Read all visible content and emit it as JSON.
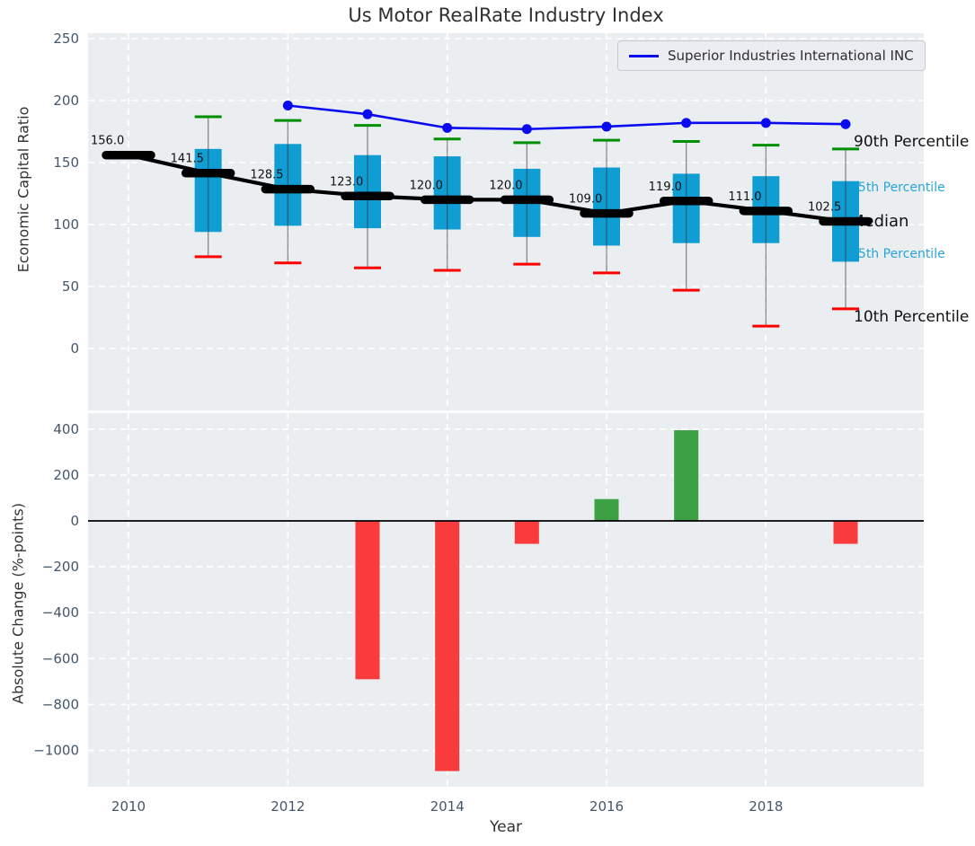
{
  "title": "Us Motor RealRate Industry Index",
  "legend": {
    "label": "Superior Industries International INC"
  },
  "axes": {
    "top_ylabel": "Economic Capital Ratio",
    "bottom_ylabel": "Absolute Change (%-points)",
    "xlabel": "Year"
  },
  "annotations": {
    "p90": "90th Percentile",
    "p75": "75th Percentile",
    "median": "Median",
    "p25": "25th Percentile",
    "p10": "10th Percentile"
  },
  "colors": {
    "plot_bg": "#eaeef1",
    "grid": "#ffffff",
    "tick_label": "#44566b",
    "box_fill": "#109dd3",
    "whisker": "rgba(45,45,45,0.5)",
    "cap_high": "#008f00",
    "cap_low": "#fe0000",
    "median_line": "#000000",
    "company_line": "#0a0af0",
    "bar_positive": "#3da043",
    "bar_negative": "#fa3b3b",
    "annotation_cyan": "#29a5d8",
    "annotation_black": "#111111",
    "zero_line": "#000000"
  },
  "chart_data": [
    {
      "type": "box",
      "title": "Us Motor RealRate Industry Index",
      "ylabel": "Economic Capital Ratio",
      "ylim": [
        -50,
        254
      ],
      "grid": true,
      "legend_position": "upper right",
      "years": [
        2010,
        2011,
        2012,
        2013,
        2014,
        2015,
        2016,
        2017,
        2018,
        2019
      ],
      "yticks": [
        0,
        50,
        100,
        150,
        200,
        250
      ],
      "ytick_labels": [
        "0",
        "50",
        "100",
        "150",
        "200",
        "250"
      ],
      "xticks": [
        2010,
        2012,
        2014,
        2016,
        2018
      ],
      "xtick_labels": [
        "2010",
        "2012",
        "2014",
        "2016",
        "2018"
      ],
      "series": {
        "median": [
          156.0,
          141.5,
          128.5,
          123.0,
          120.0,
          120.0,
          109.0,
          119.0,
          111.0,
          102.5
        ],
        "median_labels": [
          "156.0",
          "141.5",
          "128.5",
          "123.0",
          "120.0",
          "120.0",
          "109.0",
          "119.0",
          "111.0",
          "102.5"
        ],
        "q25": [
          null,
          94,
          99,
          97,
          96,
          90,
          83,
          85,
          85,
          70
        ],
        "q75": [
          null,
          161,
          165,
          156,
          155,
          145,
          146,
          141,
          139,
          135
        ],
        "p10": [
          null,
          74,
          69,
          65,
          63,
          68,
          61,
          47,
          18,
          32
        ],
        "p90": [
          null,
          187,
          184,
          180,
          169,
          166,
          168,
          167,
          164,
          161
        ]
      },
      "company_line": {
        "name": "Superior Industries International INC",
        "years": [
          2012,
          2013,
          2014,
          2015,
          2016,
          2017,
          2018,
          2019
        ],
        "values": [
          196,
          189,
          178,
          177,
          179,
          182,
          182,
          181
        ]
      }
    },
    {
      "type": "bar",
      "ylabel": "Absolute Change (%-points)",
      "xlabel": "Year",
      "ylim": [
        -1158,
        470
      ],
      "grid": true,
      "years": [
        2010,
        2011,
        2012,
        2013,
        2014,
        2015,
        2016,
        2017,
        2018,
        2019
      ],
      "values": [
        null,
        0,
        0,
        -690,
        -1090,
        -100,
        95,
        395,
        0,
        -100
      ],
      "yticks": [
        400,
        200,
        0,
        -200,
        -400,
        -600,
        -800,
        -1000
      ],
      "ytick_labels": [
        "400",
        "200",
        "0",
        "−200",
        "−400",
        "−600",
        "−800",
        "−1000"
      ],
      "xticks": [
        2010,
        2012,
        2014,
        2016,
        2018
      ],
      "xtick_labels": [
        "2010",
        "2012",
        "2014",
        "2016",
        "2018"
      ]
    }
  ]
}
